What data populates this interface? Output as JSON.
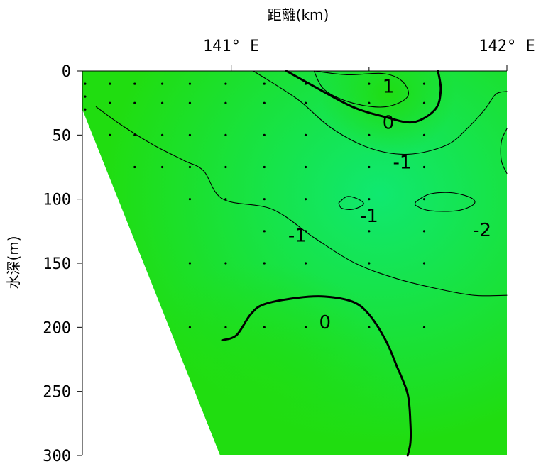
{
  "chart_data": {
    "type": "contour",
    "xlabel": "距離(km)",
    "ylabel": "水深(m)",
    "x_unit": "°E",
    "y_unit": "m",
    "xlim": [
      140.46,
      142.0
    ],
    "ylim": [
      0,
      300
    ],
    "x_ticks": [
      {
        "value": 141,
        "label": "141° E"
      },
      {
        "value": 142,
        "label": "142° E"
      }
    ],
    "y_ticks": [
      {
        "value": 0,
        "label": "0"
      },
      {
        "value": 50,
        "label": "50"
      },
      {
        "value": 100,
        "label": "100"
      },
      {
        "value": 150,
        "label": "150"
      },
      {
        "value": 200,
        "label": "200"
      },
      {
        "value": 250,
        "label": "250"
      },
      {
        "value": 300,
        "label": "300"
      }
    ],
    "colors": {
      "background": "#ffffff",
      "field_low": "#10e870",
      "field_high": "#20dd10",
      "contour": "#000000"
    },
    "bottom_boundary": [
      {
        "x": 140.46,
        "depth": 30
      },
      {
        "x": 140.96,
        "depth": 300
      }
    ],
    "sample_points": [
      {
        "x": 140.47,
        "depths": [
          10,
          20,
          30
        ]
      },
      {
        "x": 140.56,
        "depths": [
          10,
          25,
          50
        ]
      },
      {
        "x": 140.65,
        "depths": [
          10,
          25,
          50,
          75
        ]
      },
      {
        "x": 140.75,
        "depths": [
          10,
          25,
          50,
          75
        ]
      },
      {
        "x": 140.85,
        "depths": [
          10,
          25,
          50,
          75,
          100,
          150,
          200
        ]
      },
      {
        "x": 140.98,
        "depths": [
          10,
          25,
          50,
          75,
          100,
          150,
          200
        ]
      },
      {
        "x": 141.12,
        "depths": [
          10,
          25,
          50,
          75,
          100,
          125,
          150,
          200
        ]
      },
      {
        "x": 141.27,
        "depths": [
          10,
          25,
          50,
          75,
          100,
          125,
          150,
          200
        ]
      },
      {
        "x": 141.5,
        "depths": [
          10,
          25,
          50,
          75,
          100,
          125,
          150,
          200
        ]
      },
      {
        "x": 141.7,
        "depths": [
          10,
          25,
          50,
          75,
          100,
          125,
          150,
          200
        ]
      }
    ],
    "contours": [
      {
        "level": "1",
        "weight": "thin",
        "points": [
          [
            141.3,
            0
          ],
          [
            141.42,
            3
          ],
          [
            141.55,
            2
          ],
          [
            141.62,
            8
          ],
          [
            141.64,
            20
          ],
          [
            141.56,
            28
          ],
          [
            141.44,
            25
          ],
          [
            141.34,
            15
          ],
          [
            141.3,
            0
          ]
        ]
      },
      {
        "level": "0",
        "weight": "bold",
        "points": [
          [
            141.2,
            0
          ],
          [
            141.3,
            12
          ],
          [
            141.44,
            28
          ],
          [
            141.56,
            36
          ],
          [
            141.66,
            40
          ],
          [
            141.74,
            30
          ],
          [
            141.76,
            15
          ],
          [
            141.75,
            0
          ]
        ]
      },
      {
        "level": "-1",
        "weight": "thin",
        "points": [
          [
            141.08,
            0
          ],
          [
            141.24,
            22
          ],
          [
            141.36,
            44
          ],
          [
            141.5,
            60
          ],
          [
            141.64,
            65
          ],
          [
            141.78,
            58
          ],
          [
            141.86,
            44
          ],
          [
            141.92,
            30
          ],
          [
            141.96,
            18
          ],
          [
            142.0,
            16
          ]
        ]
      },
      {
        "level": "-1",
        "weight": "thin",
        "points": [
          [
            140.51,
            28
          ],
          [
            140.6,
            42
          ],
          [
            140.72,
            58
          ],
          [
            140.83,
            70
          ],
          [
            140.9,
            78
          ],
          [
            140.97,
            100
          ],
          [
            141.15,
            108
          ],
          [
            141.3,
            130
          ],
          [
            141.45,
            150
          ],
          [
            141.6,
            162
          ],
          [
            141.75,
            170
          ],
          [
            141.88,
            175
          ],
          [
            142.0,
            175
          ]
        ]
      },
      {
        "level": "-1",
        "weight": "thin",
        "points": [
          [
            141.39,
            103
          ],
          [
            141.42,
            98
          ],
          [
            141.46,
            100
          ],
          [
            141.48,
            104
          ],
          [
            141.44,
            108
          ],
          [
            141.4,
            107
          ],
          [
            141.39,
            103
          ]
        ]
      },
      {
        "level": "-2",
        "weight": "thin",
        "points": [
          [
            141.67,
            102
          ],
          [
            141.72,
            96
          ],
          [
            141.8,
            95
          ],
          [
            141.87,
            99
          ],
          [
            141.88,
            104
          ],
          [
            141.82,
            109
          ],
          [
            141.72,
            109
          ],
          [
            141.67,
            105
          ],
          [
            141.67,
            102
          ]
        ]
      },
      {
        "level": "",
        "weight": "thin",
        "points": [
          [
            142.0,
            45
          ],
          [
            141.98,
            55
          ],
          [
            141.98,
            70
          ],
          [
            142.0,
            80
          ]
        ]
      },
      {
        "level": "0",
        "weight": "bold",
        "points": [
          [
            140.97,
            210
          ],
          [
            141.02,
            206
          ],
          [
            141.07,
            190
          ],
          [
            141.12,
            182
          ],
          [
            141.24,
            177
          ],
          [
            141.34,
            176
          ],
          [
            141.44,
            180
          ],
          [
            141.5,
            190
          ],
          [
            141.56,
            210
          ],
          [
            141.6,
            230
          ],
          [
            141.64,
            252
          ],
          [
            141.65,
            275
          ],
          [
            141.65,
            290
          ],
          [
            141.64,
            300
          ]
        ]
      }
    ],
    "contour_labels": [
      {
        "text": "1",
        "x": 141.57,
        "depth": 12
      },
      {
        "text": "0",
        "x": 141.57,
        "depth": 40
      },
      {
        "text": "-1",
        "x": 141.62,
        "depth": 71
      },
      {
        "text": "-1",
        "x": 141.5,
        "depth": 113
      },
      {
        "text": "-1",
        "x": 141.24,
        "depth": 128
      },
      {
        "text": "-2",
        "x": 141.91,
        "depth": 124
      },
      {
        "text": "0",
        "x": 141.34,
        "depth": 196
      }
    ]
  }
}
